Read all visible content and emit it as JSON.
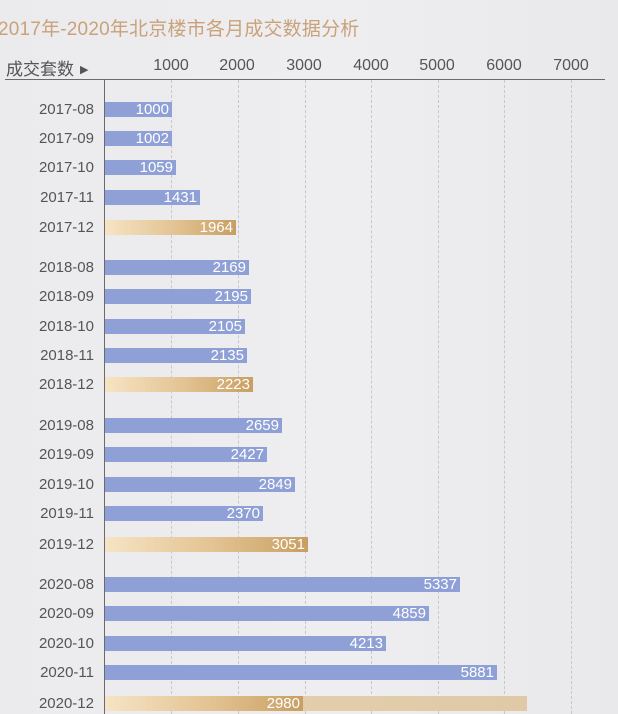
{
  "title": "2017年-2020年北京楼市各月成交数据分析",
  "y_header": "成交套数",
  "y_header_icon": "triangle-right-icon",
  "colors": {
    "regular_bar": "#8fa0d6",
    "december_bar_start": "#f6e4c4",
    "december_bar_end": "#c89f62",
    "title": "#c9a27a",
    "bar_value_text": "#ffffff"
  },
  "axis": {
    "ticks": [
      "1000",
      "2000",
      "3000",
      "4000",
      "5000",
      "6000",
      "7000"
    ]
  },
  "rows": [
    {
      "label": "2017-08",
      "value": "1000"
    },
    {
      "label": "2017-09",
      "value": "1002"
    },
    {
      "label": "2017-10",
      "value": "1059"
    },
    {
      "label": "2017-11",
      "value": "1431"
    },
    {
      "label": "2017-12",
      "value": "1964"
    },
    {
      "label": "2018-08",
      "value": "2169"
    },
    {
      "label": "2018-09",
      "value": "2195"
    },
    {
      "label": "2018-10",
      "value": "2105"
    },
    {
      "label": "2018-11",
      "value": "2135"
    },
    {
      "label": "2018-12",
      "value": "2223"
    },
    {
      "label": "2019-08",
      "value": "2659"
    },
    {
      "label": "2019-09",
      "value": "2427"
    },
    {
      "label": "2019-10",
      "value": "2849"
    },
    {
      "label": "2019-11",
      "value": "2370"
    },
    {
      "label": "2019-12",
      "value": "3051"
    },
    {
      "label": "2020-08",
      "value": "5337"
    },
    {
      "label": "2020-09",
      "value": "4859"
    },
    {
      "label": "2020-10",
      "value": "4213"
    },
    {
      "label": "2020-11",
      "value": "5881"
    },
    {
      "label": "2020-12",
      "value": "2980"
    }
  ],
  "chart_data": {
    "type": "bar",
    "orientation": "horizontal",
    "title": "2017年-2020年北京楼市各月成交数据分析",
    "xlabel": "",
    "ylabel": "成交套数",
    "xlim": [
      0,
      7000
    ],
    "x_ticks": [
      1000,
      2000,
      3000,
      4000,
      5000,
      6000,
      7000
    ],
    "grid": "vertical dashed",
    "categories": [
      "2017-08",
      "2017-09",
      "2017-10",
      "2017-11",
      "2017-12",
      "2018-08",
      "2018-09",
      "2018-10",
      "2018-11",
      "2018-12",
      "2019-08",
      "2019-09",
      "2019-10",
      "2019-11",
      "2019-12",
      "2020-08",
      "2020-09",
      "2020-10",
      "2020-11",
      "2020-12"
    ],
    "values": [
      1000,
      1002,
      1059,
      1431,
      1964,
      2169,
      2195,
      2105,
      2135,
      2223,
      2659,
      2427,
      2849,
      2370,
      3051,
      5337,
      4859,
      4213,
      5881,
      2980
    ],
    "highlighted_categories": [
      "2017-12",
      "2018-12",
      "2019-12",
      "2020-12"
    ],
    "annotations": [
      "2020-12 bar has a faded extension reaching approx. 6300"
    ]
  }
}
